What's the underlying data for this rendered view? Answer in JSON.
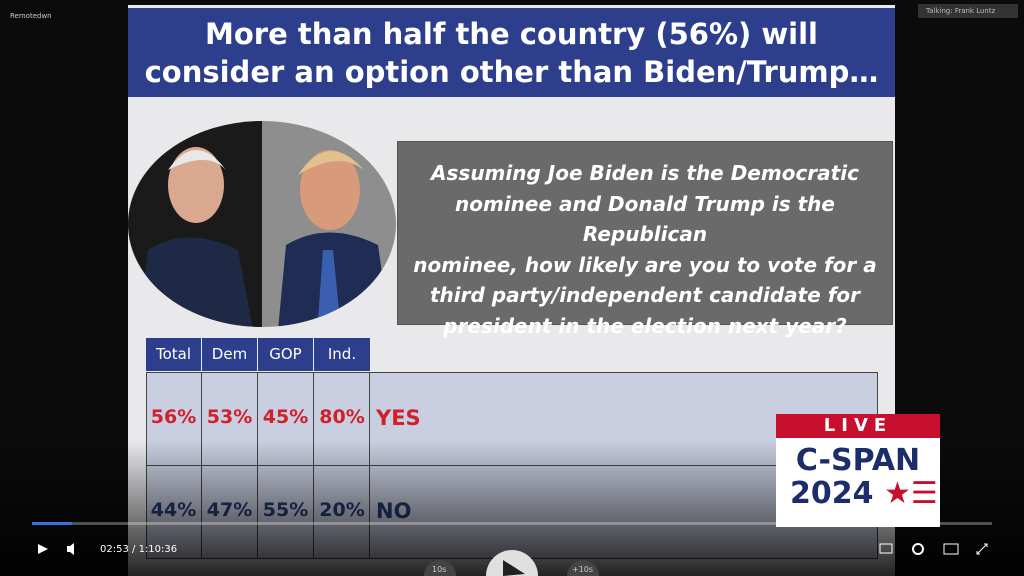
{
  "top_bar": {
    "left": "Remotedwn",
    "right": "Talking: Frank Luntz"
  },
  "slide": {
    "title_lines": [
      "More than half the country (56%) will",
      "consider an option other than Biden/Trump…"
    ],
    "question_lines": [
      "Assuming Joe Biden is the Democratic",
      "nominee and Donald Trump is the Republican",
      "nominee, how likely are you to vote for a",
      "third party/independent candidate for",
      "president in the election next year?"
    ],
    "table": {
      "header": [
        "Total",
        "Dem",
        "GOP",
        "Ind."
      ],
      "rows": [
        [
          "56%",
          "53%",
          "45%",
          "80%",
          "YES"
        ],
        [
          "44%",
          "47%",
          "55%",
          "20%",
          "NO"
        ]
      ]
    }
  },
  "logo": {
    "live": "LIVE",
    "brand": "C-SPAN",
    "year": "2024"
  },
  "player": {
    "current": "02:53",
    "separator": "/",
    "duration": "1:10:36",
    "skip_back": "10s",
    "skip_forward": "+10s"
  }
}
